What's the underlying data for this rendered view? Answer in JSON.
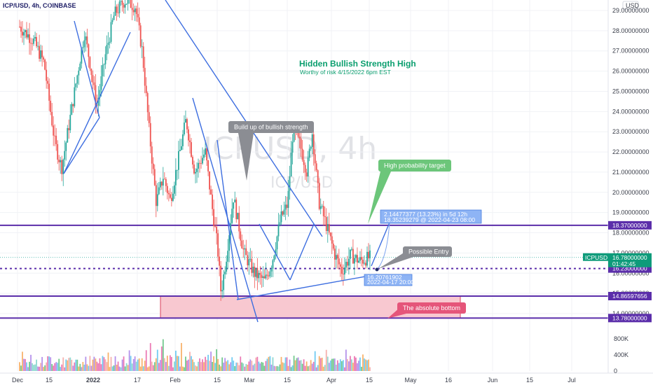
{
  "header": {
    "symbol_title": "ICP/USD, 4h, COINBASE"
  },
  "watermark": {
    "main": "ICPUSD, 4h",
    "sub": "ICP/USD"
  },
  "headline": {
    "title": "Hidden Bullish Strength High",
    "subtitle": "Worthy of risk 4/15/2022 6pm EST",
    "color": "#0a9e6e"
  },
  "colors": {
    "bull": "#26a69a",
    "bear": "#ef5350",
    "trendline": "#3d6ee0",
    "level": "#5b2eaa",
    "zone_fill": "#f8c8d0",
    "zone_border": "#d9415c",
    "price_badge": "#0e9b7a"
  },
  "chart_data": {
    "type": "candlestick",
    "symbol": "ICPUSD",
    "interval": "4h",
    "exchange": "COINBASE",
    "currency_label": "USD",
    "y_axis": {
      "range": [
        13.3,
        29.3
      ],
      "ticks": [
        "29.00000000",
        "28.00000000",
        "27.00000000",
        "26.00000000",
        "25.00000000",
        "24.00000000",
        "23.00000000",
        "22.00000000",
        "21.00000000",
        "20.00000000",
        "19.00000000",
        "18.00000000",
        "17.00000000",
        "16.00000000",
        "15.00000000",
        "14.00000000"
      ]
    },
    "x_axis": {
      "labels": [
        "Dec",
        "15",
        "2022",
        "17",
        "Feb",
        "15",
        "Mar",
        "15",
        "Apr",
        "15",
        "May",
        "16",
        "Jun",
        "15",
        "Jul"
      ]
    },
    "current_price": {
      "label": "ICPUSD",
      "value": "16.78000000",
      "countdown": "01:42:45"
    },
    "levels": [
      {
        "name": "resistance",
        "value": 18.37,
        "label": "18.37000000",
        "style": "solid"
      },
      {
        "name": "entry",
        "value": 16.23,
        "label": "16.23000000",
        "style": "dotted"
      },
      {
        "name": "zone-top",
        "value": 14.86597656,
        "label": "14.86597656",
        "style": "solid"
      },
      {
        "name": "zone-bottom",
        "value": 13.78,
        "label": "13.78000000",
        "style": "solid"
      }
    ],
    "candle_path": [
      {
        "t": 0,
        "p": 28.2
      },
      {
        "t": 0.04,
        "p": 27.5
      },
      {
        "t": 0.07,
        "p": 26.4
      },
      {
        "t": 0.1,
        "p": 22.5
      },
      {
        "t": 0.12,
        "p": 21.2
      },
      {
        "t": 0.155,
        "p": 24.8
      },
      {
        "t": 0.185,
        "p": 27.9
      },
      {
        "t": 0.2,
        "p": 26.5
      },
      {
        "t": 0.22,
        "p": 24.2
      },
      {
        "t": 0.245,
        "p": 26.8
      },
      {
        "t": 0.27,
        "p": 28.8
      },
      {
        "t": 0.3,
        "p": 29.5
      },
      {
        "t": 0.33,
        "p": 29.2
      },
      {
        "t": 0.35,
        "p": 27.0
      },
      {
        "t": 0.37,
        "p": 23.0
      },
      {
        "t": 0.39,
        "p": 19.5
      },
      {
        "t": 0.41,
        "p": 20.8
      },
      {
        "t": 0.43,
        "p": 19.6
      },
      {
        "t": 0.455,
        "p": 21.8
      },
      {
        "t": 0.475,
        "p": 23.6
      },
      {
        "t": 0.5,
        "p": 21.0
      },
      {
        "t": 0.53,
        "p": 22.0
      },
      {
        "t": 0.55,
        "p": 19.2
      },
      {
        "t": 0.565,
        "p": 17.3
      },
      {
        "t": 0.575,
        "p": 15.0
      },
      {
        "t": 0.59,
        "p": 16.8
      },
      {
        "t": 0.61,
        "p": 19.8
      },
      {
        "t": 0.625,
        "p": 18.4
      },
      {
        "t": 0.64,
        "p": 17.0
      },
      {
        "t": 0.67,
        "p": 16.0
      },
      {
        "t": 0.7,
        "p": 15.6
      },
      {
        "t": 0.72,
        "p": 16.5
      },
      {
        "t": 0.745,
        "p": 18.7
      },
      {
        "t": 0.765,
        "p": 19.4
      },
      {
        "t": 0.78,
        "p": 23.0
      },
      {
        "t": 0.8,
        "p": 22.4
      },
      {
        "t": 0.82,
        "p": 21.0
      },
      {
        "t": 0.835,
        "p": 23.0
      },
      {
        "t": 0.855,
        "p": 19.5
      },
      {
        "t": 0.875,
        "p": 18.4
      },
      {
        "t": 0.9,
        "p": 16.9
      },
      {
        "t": 0.92,
        "p": 16.1
      },
      {
        "t": 0.945,
        "p": 16.9
      },
      {
        "t": 0.97,
        "p": 16.6
      },
      {
        "t": 1,
        "p": 16.78
      }
    ],
    "volume_axis": {
      "ticks": [
        "800K",
        "400K",
        "0"
      ],
      "range": [
        0,
        900000
      ]
    },
    "projection": {
      "label": "2.14477377 (13.23%) in 5d 12h",
      "detail": "18.35239279 @ 2022-04-23 08:00",
      "from": 16.23,
      "to": 18.35
    },
    "entry_marker": {
      "label": "16.20761902",
      "detail": "2022-04-17 20:00"
    },
    "annotations": [
      {
        "name": "bullish-strength-callout",
        "text": "Build up of bullish strength"
      },
      {
        "name": "high-probability-callout",
        "text": "High probability target"
      },
      {
        "name": "possible-entry-callout",
        "text": "Possible Entry"
      },
      {
        "name": "absolute-bottom-callout",
        "text": "The absolute bottom"
      }
    ]
  }
}
